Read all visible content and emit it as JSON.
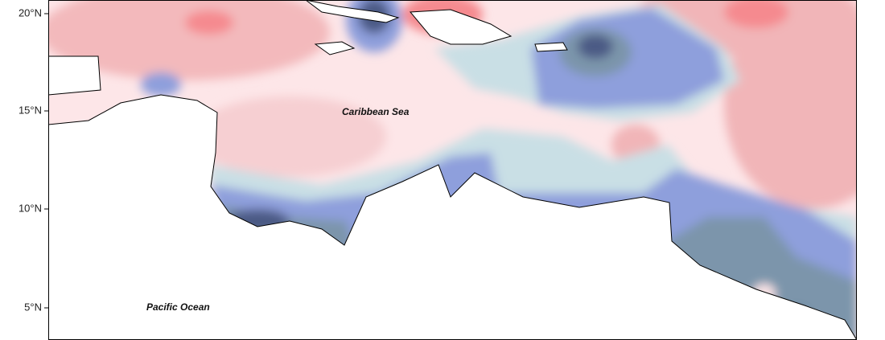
{
  "axis": {
    "lat_labels": [
      "20°N",
      "15°N",
      "10°N",
      "5°N"
    ]
  },
  "labels": {
    "sea": "Caribbean Sea",
    "ocean": "Pacific Ocean"
  }
}
